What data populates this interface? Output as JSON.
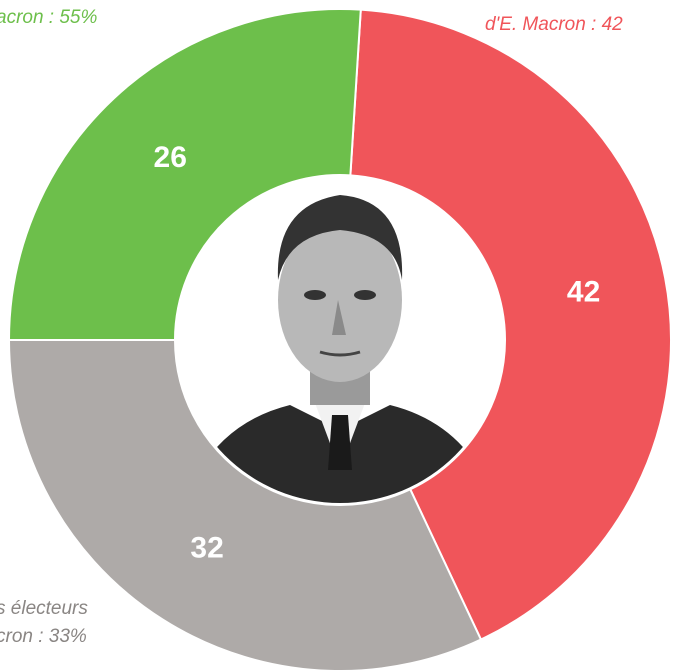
{
  "chart_data": {
    "type": "donut",
    "categories": [
      null,
      null,
      null
    ],
    "values": [
      42,
      32,
      26
    ],
    "colors": [
      "#f0555a",
      "#aeaaa8",
      "#6dbf4b"
    ],
    "annotations": [
      {
        "text": "acron : 55%",
        "color": "#6dbf4b"
      },
      {
        "text": "d'E. Macron : 42",
        "color": "#f0555a"
      },
      {
        "text": "s électeurs",
        "color": "#8a8684"
      },
      {
        "text": "cron : 33%",
        "color": "#8a8684"
      }
    ]
  }
}
